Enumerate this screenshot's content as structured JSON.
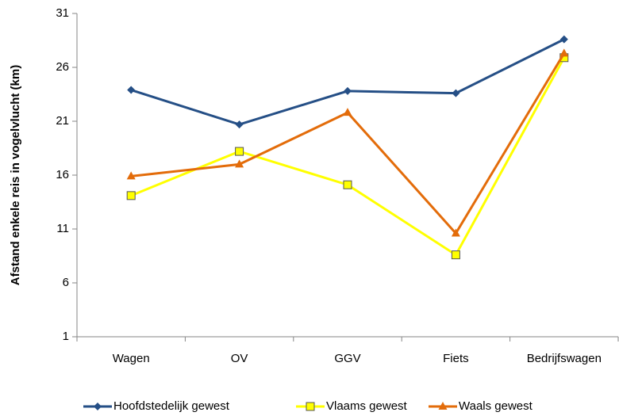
{
  "chart_data": {
    "type": "line",
    "y_label": "Afstand enkele reis in vogelvlucht (km)",
    "categories": [
      "Wagen",
      "OV",
      "GGV",
      "Fiets",
      "Bedrijfswagen"
    ],
    "series": [
      {
        "name": "Hoofdstedelijk gewest",
        "color": "#254f86",
        "marker": "diamond",
        "values": [
          23.9,
          20.7,
          23.8,
          23.6,
          28.6
        ]
      },
      {
        "name": "Vlaams gewest",
        "color": "#ffff00",
        "marker": "square",
        "values": [
          14.1,
          18.2,
          15.1,
          8.6,
          26.9
        ]
      },
      {
        "name": "Waals gewest",
        "color": "#e36c0a",
        "marker": "triangle",
        "values": [
          15.9,
          17.0,
          21.8,
          10.6,
          27.3
        ]
      }
    ],
    "ylim": [
      1,
      31
    ],
    "yticks": [
      1,
      6,
      11,
      16,
      21,
      26,
      31
    ],
    "grid": false,
    "legend": "bottom"
  }
}
